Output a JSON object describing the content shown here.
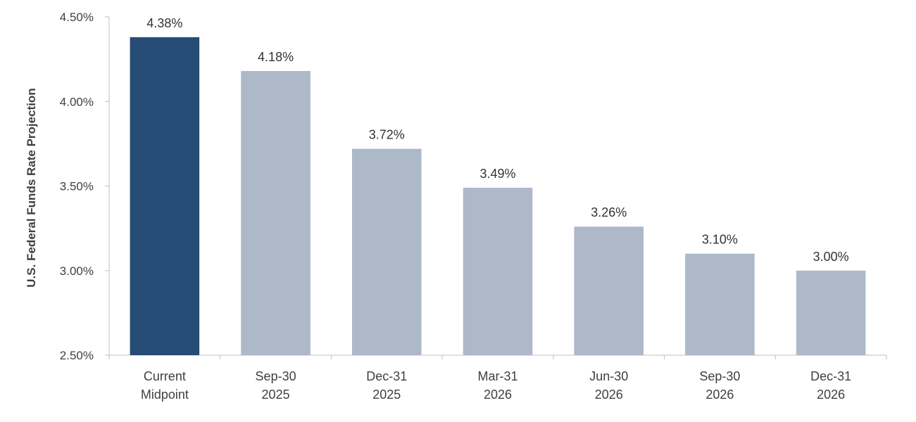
{
  "chart_data": {
    "type": "bar",
    "ylabel": "U.S. Federal Funds Rate Projection",
    "categories": [
      [
        "Current",
        "Midpoint"
      ],
      [
        "Sep-30",
        "2025"
      ],
      [
        "Dec-31",
        "2025"
      ],
      [
        "Mar-31",
        "2026"
      ],
      [
        "Jun-30",
        "2026"
      ],
      [
        "Sep-30",
        "2026"
      ],
      [
        "Dec-31",
        "2026"
      ]
    ],
    "values": [
      4.38,
      4.18,
      3.72,
      3.49,
      3.26,
      3.1,
      3.0
    ],
    "value_labels": [
      "4.38%",
      "4.18%",
      "3.72%",
      "3.49%",
      "3.26%",
      "3.10%",
      "3.00%"
    ],
    "ylim": [
      2.5,
      4.5
    ],
    "yticks": [
      2.5,
      3.0,
      3.5,
      4.0,
      4.5
    ],
    "ytick_labels": [
      "2.50%",
      "3.00%",
      "3.50%",
      "4.00%",
      "4.50%"
    ],
    "grid": false,
    "legend": "none",
    "colors": {
      "highlight": "#264b75",
      "default": "#adb9c9"
    },
    "highlight_index": 0
  }
}
